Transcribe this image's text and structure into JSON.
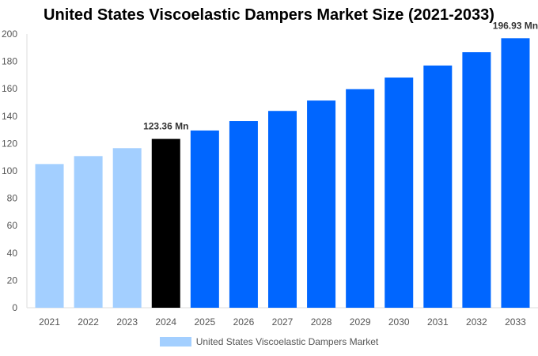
{
  "chart_data": {
    "type": "bar",
    "title": "United States Viscoelastic Dampers Market Size (2021-2033)",
    "categories": [
      "2021",
      "2022",
      "2023",
      "2024",
      "2025",
      "2026",
      "2027",
      "2028",
      "2029",
      "2030",
      "2031",
      "2032",
      "2033"
    ],
    "series": [
      {
        "name": "United States Viscoelastic Dampers Market",
        "values": [
          105.0,
          110.8,
          116.6,
          123.36,
          129.5,
          136.4,
          143.8,
          151.4,
          159.7,
          168.2,
          177.0,
          186.7,
          196.93
        ]
      }
    ],
    "bar_colors": [
      "#a3cfff",
      "#a3cfff",
      "#a3cfff",
      "#000000",
      "#0066ff",
      "#0066ff",
      "#0066ff",
      "#0066ff",
      "#0066ff",
      "#0066ff",
      "#0066ff",
      "#0066ff",
      "#0066ff"
    ],
    "data_labels": {
      "3": "123.36 Mn",
      "12": "196.93 Mn"
    },
    "yticks": [
      0,
      20,
      40,
      60,
      80,
      100,
      120,
      140,
      160,
      180,
      200
    ],
    "ylim": [
      0,
      200
    ],
    "grid": false,
    "legend": "bottom"
  }
}
